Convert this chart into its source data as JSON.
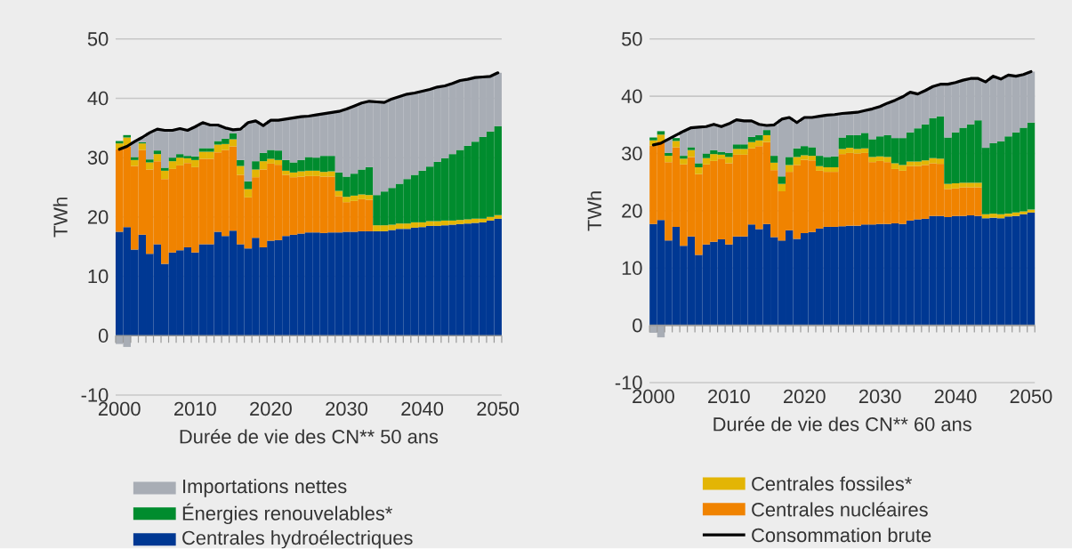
{
  "chart_data": [
    {
      "type": "bar",
      "stacked": true,
      "xlabel": "Durée de vie des CN** 50 ans",
      "ylabel": "TWh",
      "legend": "bottom",
      "grid": "y",
      "x": [
        2000,
        2001,
        2002,
        2003,
        2004,
        2005,
        2006,
        2007,
        2008,
        2009,
        2010,
        2011,
        2012,
        2013,
        2014,
        2015,
        2016,
        2017,
        2018,
        2019,
        2020,
        2021,
        2022,
        2023,
        2024,
        2025,
        2026,
        2027,
        2028,
        2029,
        2030,
        2031,
        2032,
        2033,
        2034,
        2035,
        2036,
        2037,
        2038,
        2039,
        2040,
        2041,
        2042,
        2043,
        2044,
        2045,
        2046,
        2047,
        2048,
        2049,
        2050
      ],
      "xlim": [
        1999.5,
        2050.5
      ],
      "xticks": [
        2000,
        2010,
        2020,
        2030,
        2040,
        2050
      ],
      "ylim": [
        -10,
        50
      ],
      "yticks": [
        -10,
        0,
        10,
        20,
        30,
        40,
        50
      ],
      "series": [
        {
          "name": "Centrales hydroélectriques",
          "color": "#003893",
          "values": [
            17.5,
            18.3,
            14.5,
            17.0,
            13.8,
            15.4,
            12.1,
            14.0,
            14.4,
            14.9,
            14.0,
            15.4,
            15.4,
            17.5,
            16.8,
            17.7,
            15.4,
            14.7,
            16.5,
            14.9,
            16.0,
            16.1,
            16.8,
            17.0,
            17.2,
            17.4,
            17.4,
            17.3,
            17.4,
            17.4,
            17.5,
            17.5,
            17.6,
            17.6,
            17.6,
            17.6,
            17.8,
            18.0,
            18.0,
            18.2,
            18.3,
            18.5,
            18.5,
            18.6,
            18.7,
            18.8,
            18.9,
            19.0,
            19.1,
            19.4,
            19.7
          ]
        },
        {
          "color": "#f08300",
          "values": [
            13.9,
            13.6,
            14.1,
            14.3,
            14.2,
            14.0,
            14.3,
            14.1,
            14.3,
            14.2,
            14.4,
            14.4,
            14.4,
            13.4,
            14.5,
            14.2,
            11.7,
            8.6,
            10.2,
            13.1,
            13.0,
            12.7,
            10.3,
            9.7,
            9.6,
            9.5,
            9.5,
            9.5,
            9.4,
            6.1,
            5.0,
            5.2,
            5.4,
            5.3,
            0,
            0,
            0,
            0,
            0,
            0,
            0,
            0,
            0,
            0,
            0,
            0,
            0,
            0,
            0,
            0,
            0
          ]
        },
        {
          "color": "#e3b505",
          "values": [
            1.0,
            1.5,
            1.0,
            1.1,
            1.2,
            1.2,
            1.4,
            1.3,
            1.3,
            0.8,
            1.2,
            1.2,
            1.2,
            1.3,
            1.0,
            1.2,
            1.5,
            1.4,
            1.3,
            1.4,
            0.8,
            0.8,
            0.7,
            0.8,
            0.9,
            0.9,
            0.9,
            0.8,
            0.9,
            0.9,
            0.9,
            0.9,
            0.8,
            0.8,
            1.0,
            1.0,
            0.9,
            0.9,
            0.9,
            0.9,
            0.8,
            0.8,
            0.8,
            0.8,
            0.7,
            0.7,
            0.7,
            0.7,
            0.6,
            0.6,
            0.6
          ]
        },
        {
          "name": "Énergies renouvelables*",
          "color": "#008c2e",
          "values": [
            0.4,
            0.4,
            0.5,
            0.2,
            0.5,
            0.6,
            0.5,
            0.6,
            0.6,
            0.4,
            0.6,
            0.6,
            0.6,
            0.6,
            0.9,
            1.0,
            1.0,
            1.3,
            1.4,
            1.4,
            1.5,
            1.6,
            1.8,
            1.7,
            1.9,
            2.3,
            2.2,
            2.7,
            2.6,
            3.1,
            3.4,
            3.7,
            4.2,
            4.7,
            5.1,
            5.7,
            6.2,
            6.7,
            7.5,
            8.0,
            8.7,
            9.2,
            10.0,
            10.5,
            11.2,
            11.8,
            12.4,
            13.0,
            13.8,
            14.4,
            15.0
          ]
        },
        {
          "name": "Importations nettes",
          "color": "#a8adb5",
          "values": [
            -1.4,
            -1.9,
            2.6,
            0.8,
            4.5,
            3.6,
            6.3,
            4.6,
            4.3,
            4.3,
            5.0,
            4.3,
            3.9,
            2.7,
            1.8,
            0.6,
            5.2,
            9.9,
            6.8,
            4.6,
            5.0,
            5.1,
            6.9,
            7.5,
            7.3,
            6.9,
            7.2,
            7.1,
            7.3,
            10.3,
            11.4,
            11.4,
            11.2,
            11.1,
            15.7,
            15.0,
            15.0,
            14.7,
            14.3,
            13.8,
            13.4,
            13.0,
            12.6,
            12.2,
            11.9,
            11.7,
            11.2,
            10.8,
            10.1,
            9.3,
            9.0
          ]
        },
        {
          "type": "line",
          "color": "#000000",
          "values": [
            31.4,
            31.9,
            32.7,
            33.4,
            34.2,
            34.8,
            34.6,
            34.6,
            34.9,
            34.6,
            35.2,
            35.9,
            35.5,
            35.5,
            35.0,
            34.7,
            34.8,
            35.9,
            36.2,
            35.4,
            36.3,
            36.3,
            36.5,
            36.7,
            36.9,
            37.0,
            37.2,
            37.4,
            37.6,
            37.8,
            38.2,
            38.7,
            39.2,
            39.5,
            39.4,
            39.3,
            39.9,
            40.3,
            40.7,
            40.9,
            41.2,
            41.5,
            41.9,
            42.1,
            42.5,
            43.0,
            43.2,
            43.5,
            43.6,
            43.7,
            44.3
          ]
        }
      ]
    },
    {
      "type": "bar",
      "stacked": true,
      "xlabel": "Durée de vie des CN** 60 ans",
      "ylabel": "TWh",
      "legend": "bottom",
      "grid": "y",
      "x": [
        2000,
        2001,
        2002,
        2003,
        2004,
        2005,
        2006,
        2007,
        2008,
        2009,
        2010,
        2011,
        2012,
        2013,
        2014,
        2015,
        2016,
        2017,
        2018,
        2019,
        2020,
        2021,
        2022,
        2023,
        2024,
        2025,
        2026,
        2027,
        2028,
        2029,
        2030,
        2031,
        2032,
        2033,
        2034,
        2035,
        2036,
        2037,
        2038,
        2039,
        2040,
        2041,
        2042,
        2043,
        2044,
        2045,
        2046,
        2047,
        2048,
        2049,
        2050
      ],
      "xlim": [
        1999.5,
        2050.5
      ],
      "xticks": [
        2000,
        2010,
        2020,
        2030,
        2040,
        2050
      ],
      "ylim": [
        -10,
        50
      ],
      "yticks": [
        -10,
        0,
        10,
        20,
        30,
        40,
        50
      ],
      "series": [
        {
          "color": "#003893",
          "values": [
            17.7,
            18.4,
            14.8,
            17.2,
            13.9,
            15.5,
            12.3,
            14.1,
            14.6,
            15.0,
            14.1,
            15.5,
            15.5,
            17.6,
            16.8,
            17.7,
            15.4,
            14.8,
            16.6,
            15.1,
            16.1,
            16.3,
            16.9,
            17.2,
            17.2,
            17.3,
            17.4,
            17.4,
            17.6,
            17.6,
            17.7,
            17.7,
            17.8,
            17.7,
            18.3,
            18.5,
            18.6,
            19.1,
            19.1,
            18.9,
            19.1,
            19.1,
            19.2,
            19.1,
            18.7,
            18.8,
            18.7,
            19.0,
            19.1,
            19.4,
            19.7
          ]
        },
        {
          "name": "Centrales nucléaires",
          "color": "#f08300",
          "values": [
            13.7,
            13.7,
            13.7,
            13.9,
            14.2,
            13.9,
            14.1,
            14.0,
            14.1,
            14.1,
            14.2,
            14.3,
            14.3,
            13.3,
            14.5,
            14.3,
            11.7,
            8.6,
            10.2,
            12.9,
            12.8,
            12.5,
            10.1,
            9.6,
            9.6,
            12.6,
            12.7,
            12.6,
            12.5,
            10.9,
            11.0,
            10.8,
            9.5,
            9.3,
            9.5,
            9.3,
            9.4,
            9.2,
            9.1,
            4.9,
            4.8,
            5.0,
            4.9,
            5.0,
            0,
            0,
            0,
            0,
            0,
            0,
            0
          ]
        },
        {
          "name": "Centrales fossiles*",
          "color": "#e3b505",
          "values": [
            0.9,
            1.2,
            1.1,
            1.1,
            1.0,
            1.2,
            1.2,
            1.1,
            1.2,
            0.7,
            1.1,
            1.0,
            1.0,
            1.1,
            1.0,
            1.2,
            1.3,
            1.3,
            1.2,
            1.4,
            0.8,
            0.8,
            0.8,
            0.8,
            0.8,
            0.9,
            0.9,
            0.8,
            0.8,
            0.9,
            0.8,
            0.9,
            1.0,
            1.0,
            0.8,
            0.8,
            0.8,
            0.9,
            0.9,
            0.9,
            0.9,
            0.8,
            0.8,
            0.8,
            0.7,
            0.7,
            0.7,
            0.5,
            0.6,
            0.5,
            0.5
          ]
        },
        {
          "color": "#008c2e",
          "values": [
            0.5,
            0.6,
            0.5,
            0.5,
            0.5,
            0.5,
            0.7,
            0.8,
            0.7,
            0.5,
            0.7,
            0.8,
            0.8,
            0.9,
            0.9,
            0.9,
            1.2,
            1.3,
            1.4,
            1.5,
            1.6,
            1.5,
            1.8,
            1.8,
            1.9,
            2.0,
            2.2,
            2.4,
            2.7,
            3.1,
            3.5,
            3.8,
            4.4,
            4.7,
            5.1,
            5.8,
            6.3,
            7.0,
            7.4,
            8.1,
            8.9,
            9.6,
            10.2,
            10.9,
            11.6,
            12.3,
            12.7,
            13.5,
            14.0,
            14.6,
            15.2
          ]
        },
        {
          "color": "#a8adb5",
          "values": [
            -1.3,
            -2.1,
            2.4,
            null,
            4.3,
            3.4,
            6.3,
            4.7,
            4.5,
            4.4,
            5.1,
            4.3,
            4.1,
            2.8,
            1.9,
            0.8,
            5.4,
            10.0,
            6.9,
            4.5,
            5.0,
            5.2,
            6.9,
            7.3,
            7.3,
            4.2,
            3.9,
            4.0,
            3.9,
            5.3,
            5.2,
            5.6,
            6.6,
            7.2,
            7.0,
            6.0,
            5.9,
            5.5,
            5.6,
            9.3,
            8.7,
            8.3,
            8.0,
            7.3,
            11.5,
            11.7,
            10.9,
            10.7,
            9.8,
            9.3,
            8.9
          ]
        },
        {
          "name": "Consommation brute",
          "type": "line",
          "color": "#000000",
          "values": [
            31.5,
            31.8,
            32.5,
            33.2,
            33.9,
            34.5,
            34.6,
            34.7,
            35.1,
            34.7,
            35.2,
            35.9,
            35.7,
            35.7,
            35.1,
            34.9,
            35.0,
            36.0,
            36.3,
            35.4,
            36.3,
            36.3,
            36.5,
            36.7,
            36.8,
            37.0,
            37.1,
            37.2,
            37.5,
            37.8,
            38.2,
            38.8,
            39.3,
            39.9,
            40.7,
            40.4,
            41.0,
            41.7,
            42.1,
            42.1,
            42.4,
            42.8,
            43.1,
            43.1,
            42.5,
            43.5,
            43.0,
            43.7,
            43.5,
            43.8,
            44.3
          ]
        }
      ]
    }
  ]
}
